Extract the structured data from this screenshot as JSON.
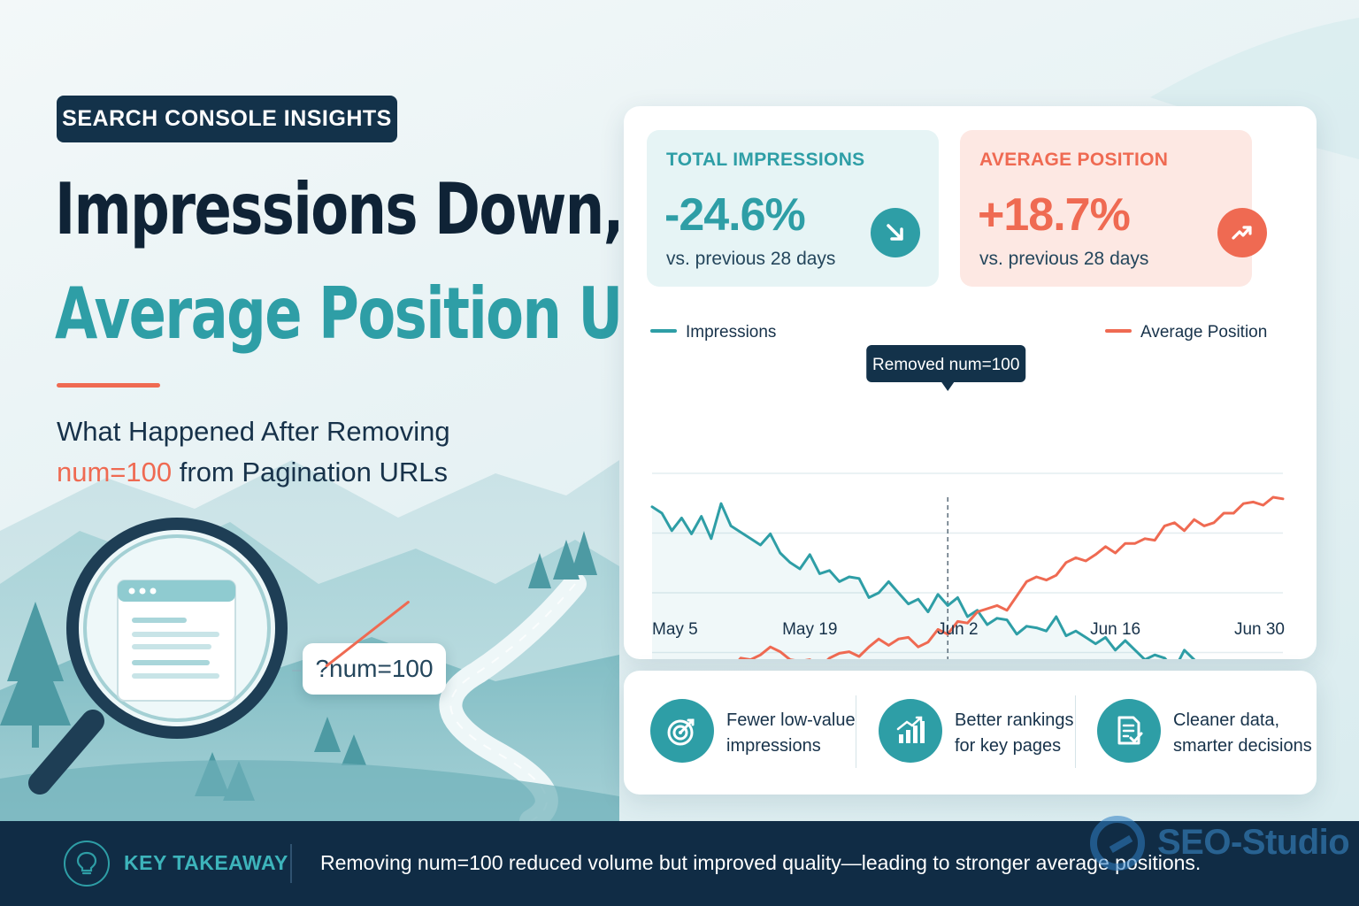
{
  "header": {
    "badge": "SEARCH CONSOLE INSIGHTS",
    "headline_line1": "Impressions Down,",
    "headline_line2": "Average Position Up",
    "subtitle_line1": "What Happened After Removing",
    "subtitle_highlight": "num=100",
    "subtitle_line2_rest": " from Pagination URLs"
  },
  "illustration": {
    "param_label": "?num=100",
    "icon": "magnifier-over-browser-icon"
  },
  "kpis": [
    {
      "label": "TOTAL IMPRESSIONS",
      "value": "-24.6%",
      "caption": "vs. previous 28 days",
      "icon": "arrow-down-right-icon",
      "color": "#2e9ea6"
    },
    {
      "label": "AVERAGE POSITION",
      "value": "+18.7%",
      "caption": "vs. previous 28 days",
      "icon": "trend-up-icon",
      "color": "#ef6a52"
    }
  ],
  "chart_data": {
    "type": "line",
    "x_tick_labels": [
      "May 5",
      "May 19",
      "Jun 2",
      "Jun 16",
      "Jun 30"
    ],
    "legend": [
      "Impressions",
      "Average Position"
    ],
    "annotation": {
      "text": "Removed num=100",
      "at_point": 30
    },
    "grid": true,
    "y_axis_labels": false,
    "series": [
      {
        "name": "Impressions",
        "color": "#2e9ea6",
        "values": [
          79,
          75,
          64,
          72,
          62,
          73,
          59,
          81,
          67,
          63,
          59,
          55,
          62,
          50,
          44,
          40,
          49,
          37,
          39,
          32,
          35,
          34,
          22,
          25,
          32,
          25,
          18,
          21,
          13,
          24,
          17,
          22,
          10,
          14,
          5,
          9,
          8,
          -1,
          4,
          3,
          1,
          10,
          -2,
          1,
          -3,
          -7,
          -3,
          -11,
          -5,
          -11,
          -17,
          -14,
          -16,
          -23,
          -11,
          -17,
          -27,
          -22,
          -25,
          -32,
          -25,
          -36,
          -32,
          -35,
          -30
        ]
      },
      {
        "name": "Average Position",
        "color": "#ef6a52",
        "values": [
          -27,
          -24,
          -21,
          -24,
          -21,
          -24,
          -19,
          -25,
          -23,
          -16,
          -17,
          -14,
          -9,
          -12,
          -17,
          -18,
          -17,
          -22,
          -16,
          -13,
          -12,
          -15,
          -9,
          -4,
          -8,
          -4,
          -3,
          -9,
          -6,
          2,
          -1,
          7,
          6,
          13,
          15,
          17,
          14,
          23,
          32,
          35,
          33,
          36,
          44,
          47,
          45,
          49,
          54,
          50,
          56,
          56,
          59,
          58,
          67,
          69,
          64,
          71,
          67,
          69,
          75,
          75,
          81,
          82,
          80,
          85,
          84
        ]
      }
    ]
  },
  "benefits": [
    {
      "line1": "Fewer low-value",
      "line2": "impressions",
      "icon": "target-icon"
    },
    {
      "line1": "Better rankings",
      "line2": "for key pages",
      "icon": "bar-chart-up-icon"
    },
    {
      "line1": "Cleaner data,",
      "line2": "smarter decisions",
      "icon": "document-check-icon"
    }
  ],
  "footer": {
    "label": "KEY TAKEAWAY",
    "message": "Removing num=100 reduced volume but improved quality—leading to stronger average positions.",
    "icon": "lightbulb-icon"
  },
  "watermark": {
    "text": "SEO-Studio"
  },
  "colors": {
    "teal": "#2e9ea6",
    "coral": "#ef6a52",
    "navy": "#102c45"
  }
}
